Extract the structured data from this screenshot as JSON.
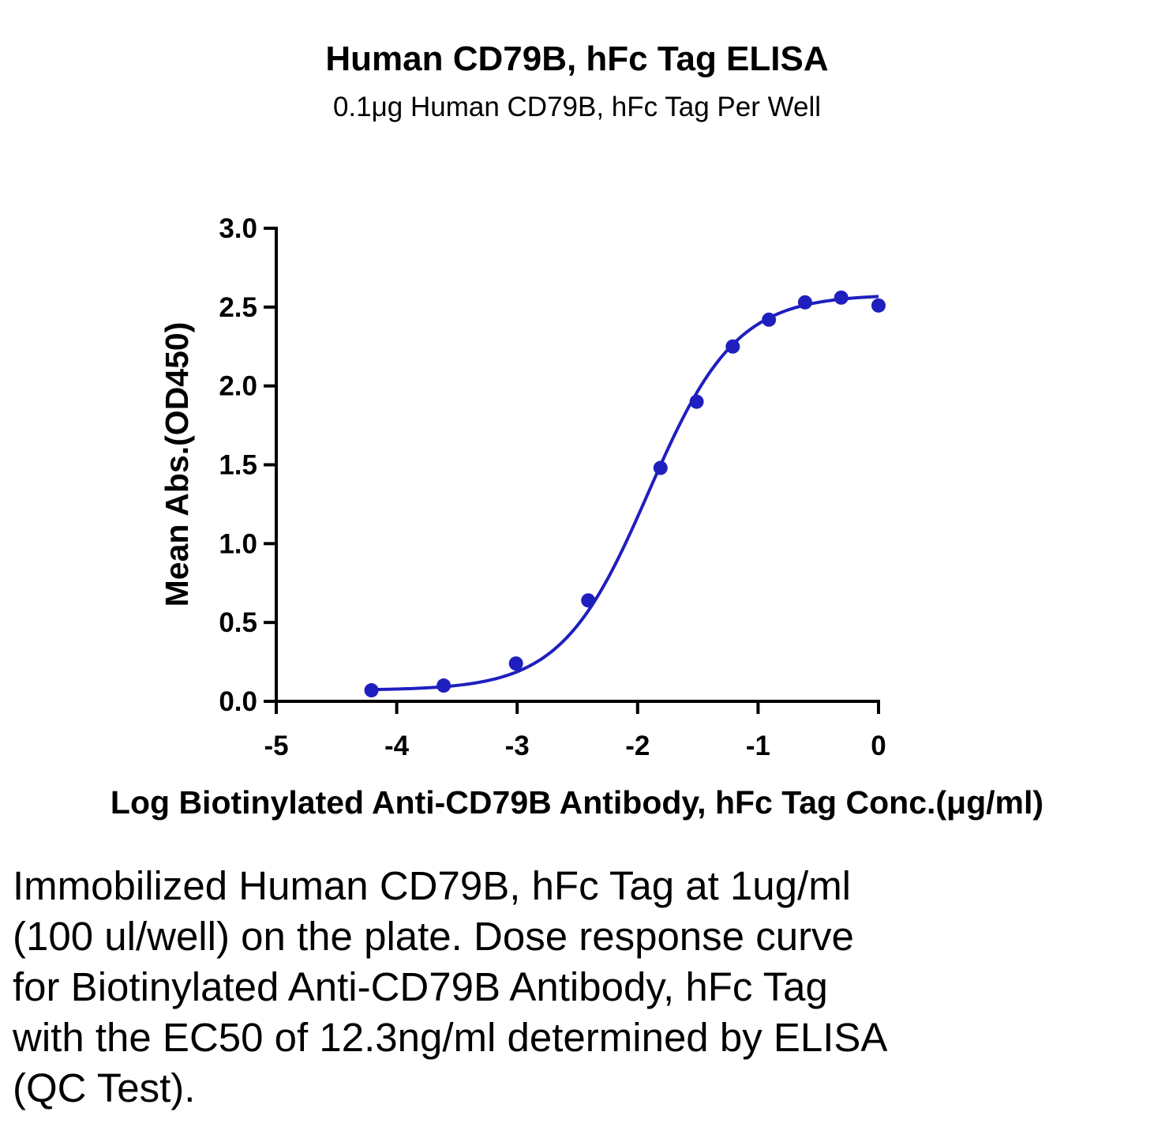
{
  "chart_data": {
    "type": "scatter",
    "title": "Human CD79B, hFc Tag ELISA",
    "subtitle": "0.1μg Human CD79B, hFc Tag Per Well",
    "xlabel": "Log Biotinylated Anti-CD79B Antibody, hFc Tag Conc.(μg/ml)",
    "ylabel": "Mean Abs.(OD450)",
    "xlim": [
      -5,
      0
    ],
    "ylim": [
      0,
      3.0
    ],
    "xticks": [
      -5,
      -4,
      -3,
      -2,
      -1,
      0
    ],
    "xtick_labels": [
      "-5",
      "-4",
      "-3",
      "-2",
      "-1",
      "0"
    ],
    "yticks": [
      0,
      0.5,
      1.0,
      1.5,
      2.0,
      2.5,
      3.0
    ],
    "ytick_labels": [
      "0.0",
      "0.5",
      "1.0",
      "1.5",
      "2.0",
      "2.5",
      "3.0"
    ],
    "grid": false,
    "series": [
      {
        "color": "#1f1fbf",
        "x": [
          -4.21,
          -3.61,
          -3.01,
          -2.41,
          -1.81,
          -1.51,
          -1.21,
          -0.91,
          -0.61,
          -0.31,
          0.0
        ],
        "y": [
          0.07,
          0.1,
          0.24,
          0.64,
          1.48,
          1.9,
          2.25,
          2.42,
          2.53,
          2.56,
          2.51
        ],
        "fit": {
          "model": "4PL",
          "bottom": 0.07,
          "top": 2.58,
          "logEC50": -1.91,
          "hill": 1.2
        }
      }
    ]
  },
  "caption": "Immobilized Human CD79B, hFc Tag at 1ug/ml (100 ul/well) on the plate. Dose response curve for Biotinylated Anti-CD79B Antibody, hFc Tag with the EC50 of 12.3ng/ml determined by ELISA (QC Test)."
}
